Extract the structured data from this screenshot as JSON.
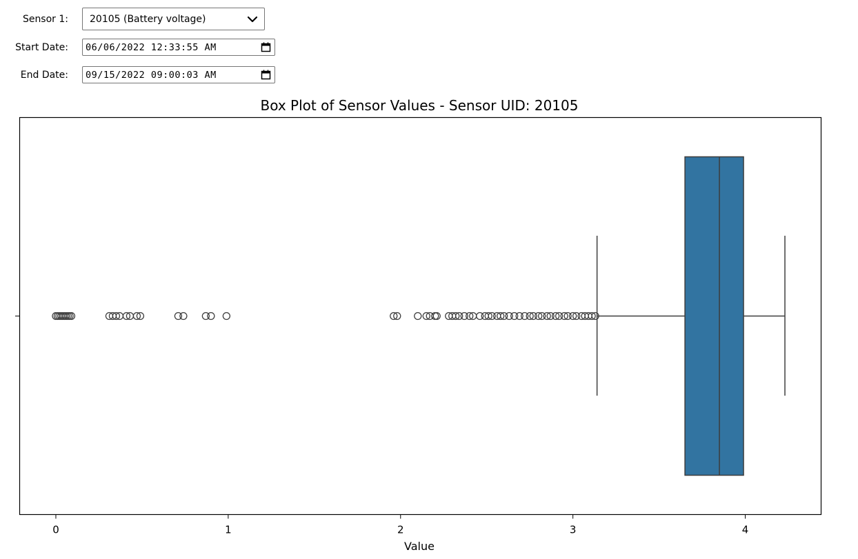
{
  "controls": {
    "sensor_label": "Sensor 1:",
    "sensor_value": "20105 (Battery voltage)",
    "start_label": "Start Date:",
    "start_value": "06/06/2022 12:33:55 AM",
    "end_label": "End Date:",
    "end_value": "09/15/2022 09:00:03 AM"
  },
  "icons": {
    "dropdown": "chevron-down-icon",
    "calendar": "calendar-icon"
  },
  "chart_data": {
    "type": "box",
    "title": "Box Plot of Sensor Values - Sensor UID: 20105",
    "xlabel": "Value",
    "ylabel": "",
    "xlim": [
      -0.21,
      4.44
    ],
    "xticks": [
      0,
      1,
      2,
      3,
      4
    ],
    "grid": false,
    "box_color": "#3274a1",
    "median_color": "#3d3d3d",
    "stats": {
      "whisker_low": 3.14,
      "q1": 3.65,
      "median": 3.85,
      "q3": 3.99,
      "whisker_high": 4.23
    },
    "outliers": [
      0.0,
      0.01,
      0.02,
      0.03,
      0.04,
      0.05,
      0.06,
      0.07,
      0.08,
      0.09,
      0.31,
      0.33,
      0.35,
      0.37,
      0.41,
      0.43,
      0.47,
      0.49,
      0.71,
      0.74,
      0.87,
      0.9,
      0.99,
      1.96,
      1.98,
      2.1,
      2.15,
      2.17,
      2.2,
      2.21,
      2.28,
      2.3,
      2.32,
      2.34,
      2.37,
      2.4,
      2.42,
      2.46,
      2.49,
      2.51,
      2.53,
      2.56,
      2.58,
      2.6,
      2.63,
      2.66,
      2.69,
      2.72,
      2.75,
      2.77,
      2.8,
      2.82,
      2.85,
      2.87,
      2.9,
      2.92,
      2.95,
      2.97,
      3.0,
      3.02,
      3.05,
      3.07,
      3.09,
      3.11,
      3.13
    ]
  }
}
